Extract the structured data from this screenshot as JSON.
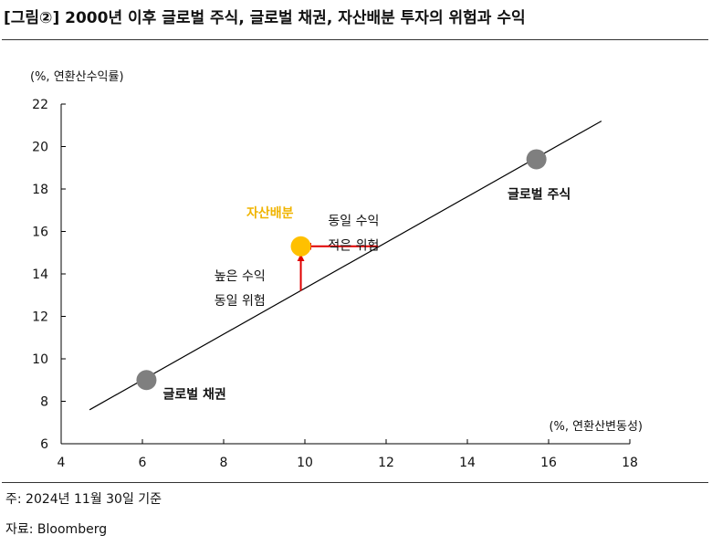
{
  "header": {
    "title": "[그림②] 2000년 이후 글로벌 주식, 글로벌 채권, 자산배분 투자의 위험과 수익"
  },
  "chart_data": {
    "type": "scatter",
    "ylabel": "(%, 연환산수익률)",
    "xlabel": "(%, 연환산변동성)",
    "xlim": [
      4,
      18
    ],
    "ylim": [
      6,
      22
    ],
    "xticks": [
      4,
      6,
      8,
      10,
      12,
      14,
      16,
      18
    ],
    "yticks": [
      6,
      8,
      10,
      12,
      14,
      16,
      18,
      20,
      22
    ],
    "grid": false,
    "points": [
      {
        "label": "글로벌 채권",
        "x": 6.1,
        "y": 9.0,
        "color": "#7f7f7f"
      },
      {
        "label": "글로벌 주식",
        "x": 15.7,
        "y": 19.4,
        "color": "#7f7f7f"
      },
      {
        "label": "자산배분",
        "x": 9.9,
        "y": 15.3,
        "color": "#ffc000"
      }
    ],
    "trendline": {
      "x": [
        4.7,
        17.3
      ],
      "y": [
        7.6,
        21.2
      ],
      "color": "#000000"
    },
    "arrows": [
      {
        "from": {
          "x": 11.8,
          "y": 15.3
        },
        "to": {
          "x": 10.0,
          "y": 15.3
        },
        "color": "#e00000"
      },
      {
        "from": {
          "x": 9.9,
          "y": 13.2
        },
        "to": {
          "x": 9.9,
          "y": 14.9
        },
        "color": "#e00000"
      }
    ],
    "annotations": [
      {
        "lines": [
          "동일 수익",
          "적은 위험"
        ],
        "x": 11.2,
        "y": 16.3
      },
      {
        "lines": [
          "높은 수익",
          "동일 위험"
        ],
        "x": 8.4,
        "y": 13.7
      }
    ]
  },
  "footer": {
    "date_note": "주: 2024년 11월 30일 기준",
    "source": "자료: Bloomberg"
  }
}
